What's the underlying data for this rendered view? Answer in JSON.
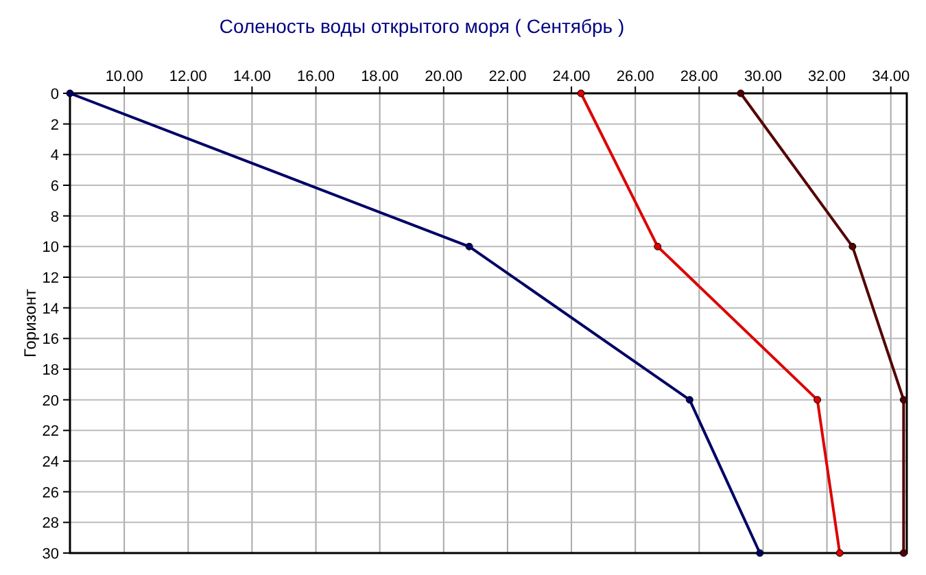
{
  "chart_data": {
    "type": "line",
    "title": "Соленость воды открытого моря   ( Сентябрь )",
    "ylabel": "Горизонт",
    "series": [
      {
        "color": "#000066",
        "x": [
          8.3,
          20.8,
          27.7,
          29.9
        ],
        "values": [
          0,
          10,
          20,
          30
        ]
      },
      {
        "color": "#dd0000",
        "x": [
          24.3,
          26.7,
          31.7,
          32.4
        ],
        "values": [
          0,
          10,
          20,
          30
        ]
      },
      {
        "color": "#550000",
        "x": [
          29.3,
          32.8,
          34.4,
          34.4
        ],
        "values": [
          0,
          10,
          20,
          30
        ]
      }
    ],
    "xlim": [
      8.3,
      34.5
    ],
    "xticks": [
      {
        "value": 10,
        "label": "10.00"
      },
      {
        "value": 12,
        "label": "12.00"
      },
      {
        "value": 14,
        "label": "14.00"
      },
      {
        "value": 16,
        "label": "16.00"
      },
      {
        "value": 18,
        "label": "18.00"
      },
      {
        "value": 20,
        "label": "20.00"
      },
      {
        "value": 22,
        "label": "22.00"
      },
      {
        "value": 24,
        "label": "24.00"
      },
      {
        "value": 26,
        "label": "26.00"
      },
      {
        "value": 28,
        "label": "28.00"
      },
      {
        "value": 30,
        "label": "30.00"
      },
      {
        "value": 32,
        "label": "32.00"
      },
      {
        "value": 34,
        "label": "34.00"
      }
    ],
    "ylim": [
      30,
      0
    ],
    "yticks": [
      0,
      2,
      4,
      6,
      8,
      10,
      12,
      14,
      16,
      18,
      20,
      22,
      24,
      26,
      28,
      30
    ],
    "grid": true,
    "marker": "circle",
    "line_style": "solid"
  }
}
